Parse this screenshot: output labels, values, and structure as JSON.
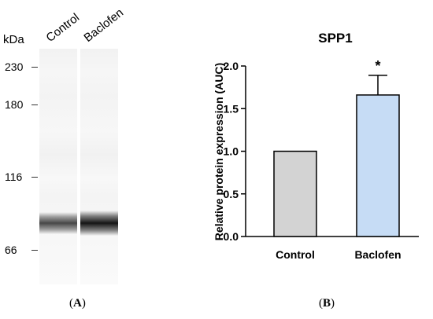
{
  "blot": {
    "kda_label": "kDa",
    "mw_markers": [
      {
        "label": "230",
        "kda": 230
      },
      {
        "label": "180",
        "kda": 180
      },
      {
        "label": "116",
        "kda": 116
      },
      {
        "label": "66",
        "kda": 66
      }
    ],
    "lanes": [
      {
        "label": "Control",
        "band_intensity": 0.72
      },
      {
        "label": "Baclofen",
        "band_intensity": 0.92
      }
    ],
    "panel_label": "A"
  },
  "chart_data": {
    "type": "bar",
    "title": "SPP1",
    "ylabel": "Relative protein expression  (AUC)",
    "xlabel": "",
    "categories": [
      "Control",
      "Baclofen"
    ],
    "values": [
      1.0,
      1.66
    ],
    "errors": [
      0,
      0.23
    ],
    "significance": [
      "",
      "*"
    ],
    "ylim": [
      0,
      2.0
    ],
    "yticks": [
      0.0,
      0.5,
      1.0,
      1.5,
      2.0
    ],
    "ytick_labels": [
      "0.0",
      "0.5",
      "1.0",
      "1.5",
      "2.0"
    ],
    "bar_colors": [
      "#d3d3d3",
      "#c6dcf5"
    ],
    "grid": false,
    "panel_label": "B"
  }
}
